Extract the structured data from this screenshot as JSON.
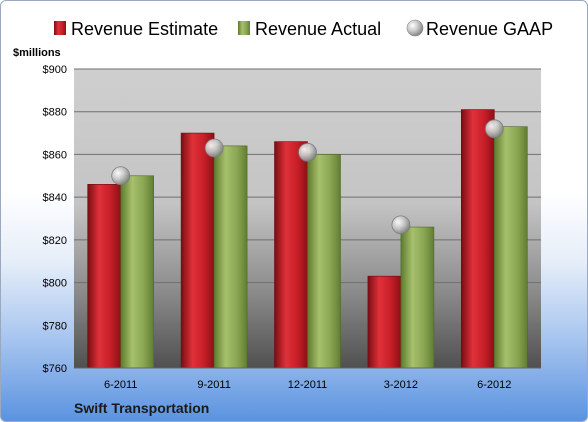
{
  "colors": {
    "estimate": "#c8202a",
    "actual": "#8daa55",
    "gaap": "#c0c0c0",
    "plot_bg_top": "#c9c9c9",
    "plot_bg_bottom": "#4a4a4a"
  },
  "chart_data": {
    "type": "bar",
    "ylabel": "$millions",
    "categories": [
      "6-2011",
      "9-2011",
      "12-2011",
      "3-2012",
      "6-2012"
    ],
    "series": [
      {
        "name": "Revenue Estimate",
        "values": [
          846,
          870,
          866,
          803,
          881
        ]
      },
      {
        "name": "Revenue Actual",
        "values": [
          850,
          864,
          860,
          826,
          873
        ]
      },
      {
        "name": "Revenue GAAP",
        "values": [
          850,
          863,
          861,
          827,
          872
        ]
      }
    ],
    "ylim": [
      760,
      900
    ],
    "yticks": [
      760,
      780,
      800,
      820,
      840,
      860,
      880,
      900
    ],
    "ytick_labels": [
      "$760",
      "$780",
      "$800",
      "$820",
      "$840",
      "$860",
      "$880",
      "$900"
    ],
    "grid": true,
    "legend_position": "top"
  },
  "footer": "Swift Transportation"
}
